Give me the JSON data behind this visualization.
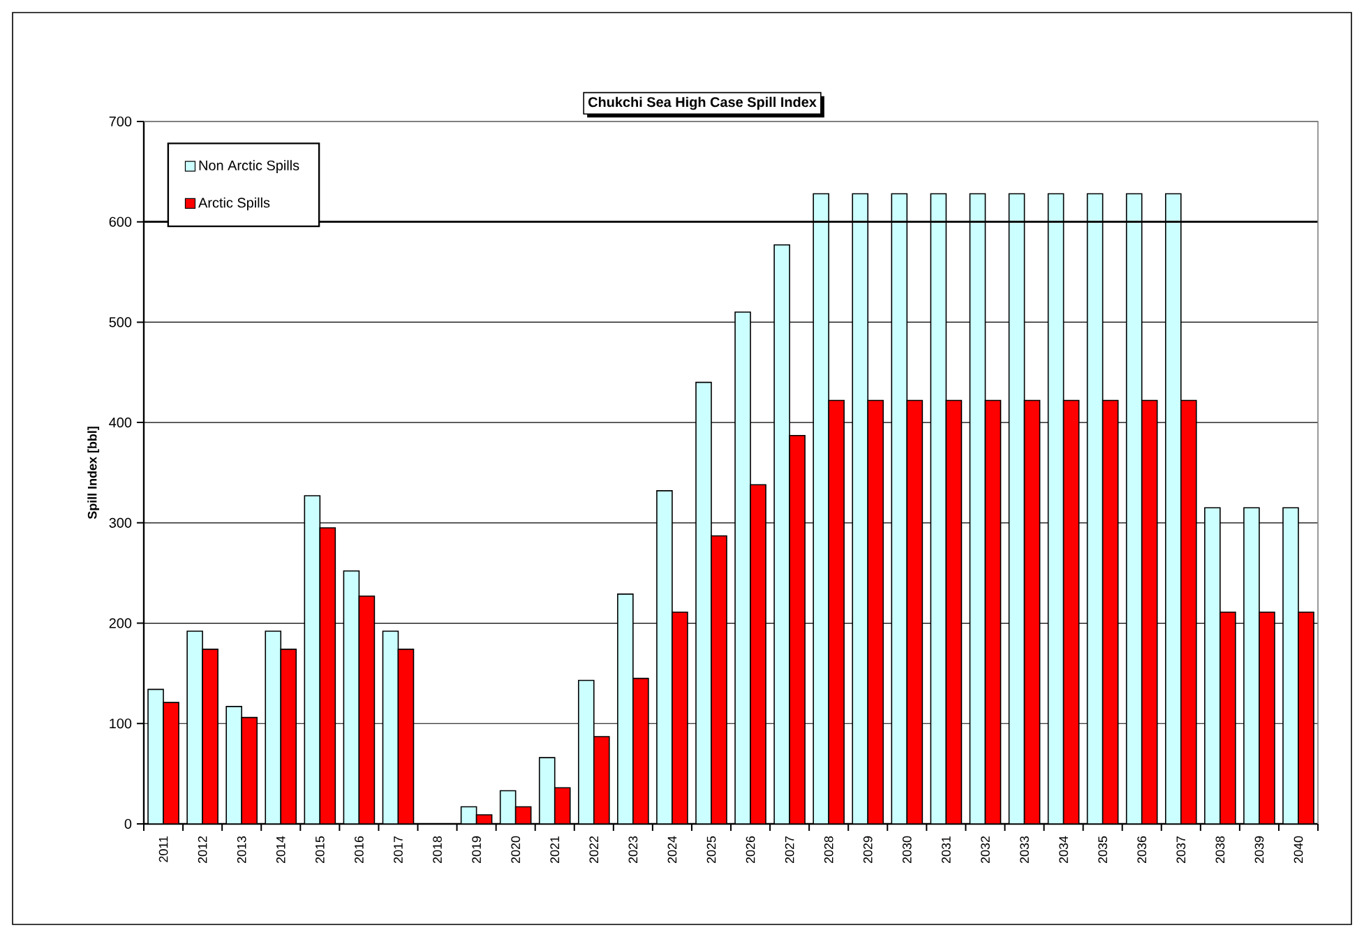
{
  "chart_data": {
    "type": "bar",
    "title": "Chukchi Sea High Case Spill Index",
    "ylabel": "Spill Index [bbl]",
    "categories": [
      "2011",
      "2012",
      "2013",
      "2014",
      "2015",
      "2016",
      "2017",
      "2018",
      "2019",
      "2020",
      "2021",
      "2022",
      "2023",
      "2024",
      "2025",
      "2026",
      "2027",
      "2028",
      "2029",
      "2030",
      "2031",
      "2032",
      "2033",
      "2034",
      "2035",
      "2036",
      "2037",
      "2038",
      "2039",
      "2040"
    ],
    "series": [
      {
        "name": "Non Arctic Spills",
        "color": "#ccffff",
        "values": [
          134,
          192,
          117,
          192,
          327,
          252,
          192,
          null,
          17,
          33,
          66,
          143,
          229,
          332,
          440,
          510,
          577,
          628,
          628,
          628,
          628,
          628,
          628,
          628,
          628,
          628,
          628,
          315,
          315,
          315
        ]
      },
      {
        "name": "Arctic Spills",
        "color": "#ff0000",
        "values": [
          121,
          174,
          106,
          174,
          295,
          227,
          174,
          null,
          9,
          17,
          36,
          87,
          145,
          211,
          287,
          338,
          387,
          422,
          422,
          422,
          422,
          422,
          422,
          422,
          422,
          422,
          422,
          211,
          211,
          211
        ]
      }
    ],
    "ylim": [
      0,
      700
    ],
    "yticks": [
      0,
      100,
      200,
      300,
      400,
      500,
      600,
      700
    ],
    "grid": "y",
    "legend": "top left",
    "ref_lines": [
      {
        "axis": "y",
        "value": 600
      }
    ]
  }
}
